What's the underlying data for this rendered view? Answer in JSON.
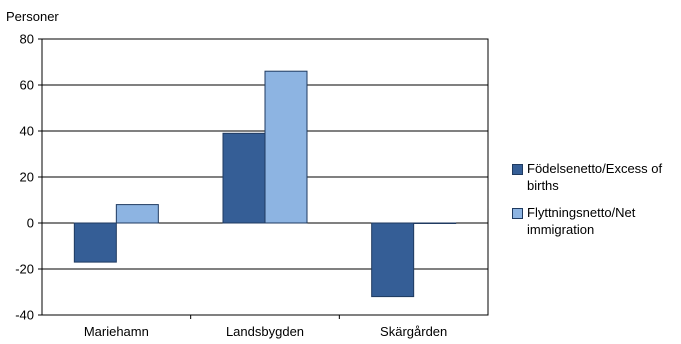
{
  "chart_data": {
    "type": "bar",
    "ylabel": "Personer",
    "categories": [
      "Mariehamn",
      "Landsbygden",
      "Skärgården"
    ],
    "series": [
      {
        "name": "Födelsenetto/Excess of births",
        "values": [
          -17,
          39,
          -32
        ],
        "color": "#355e96"
      },
      {
        "name": "Flyttningsnetto/Net immigration",
        "values": [
          8,
          66,
          0
        ],
        "color": "#8db4e2"
      }
    ],
    "ylim": [
      -40,
      80
    ],
    "yticks": [
      "80",
      "60",
      "40",
      "20",
      "0",
      "-20",
      "-40"
    ],
    "grid": true,
    "legend_position": "right"
  }
}
